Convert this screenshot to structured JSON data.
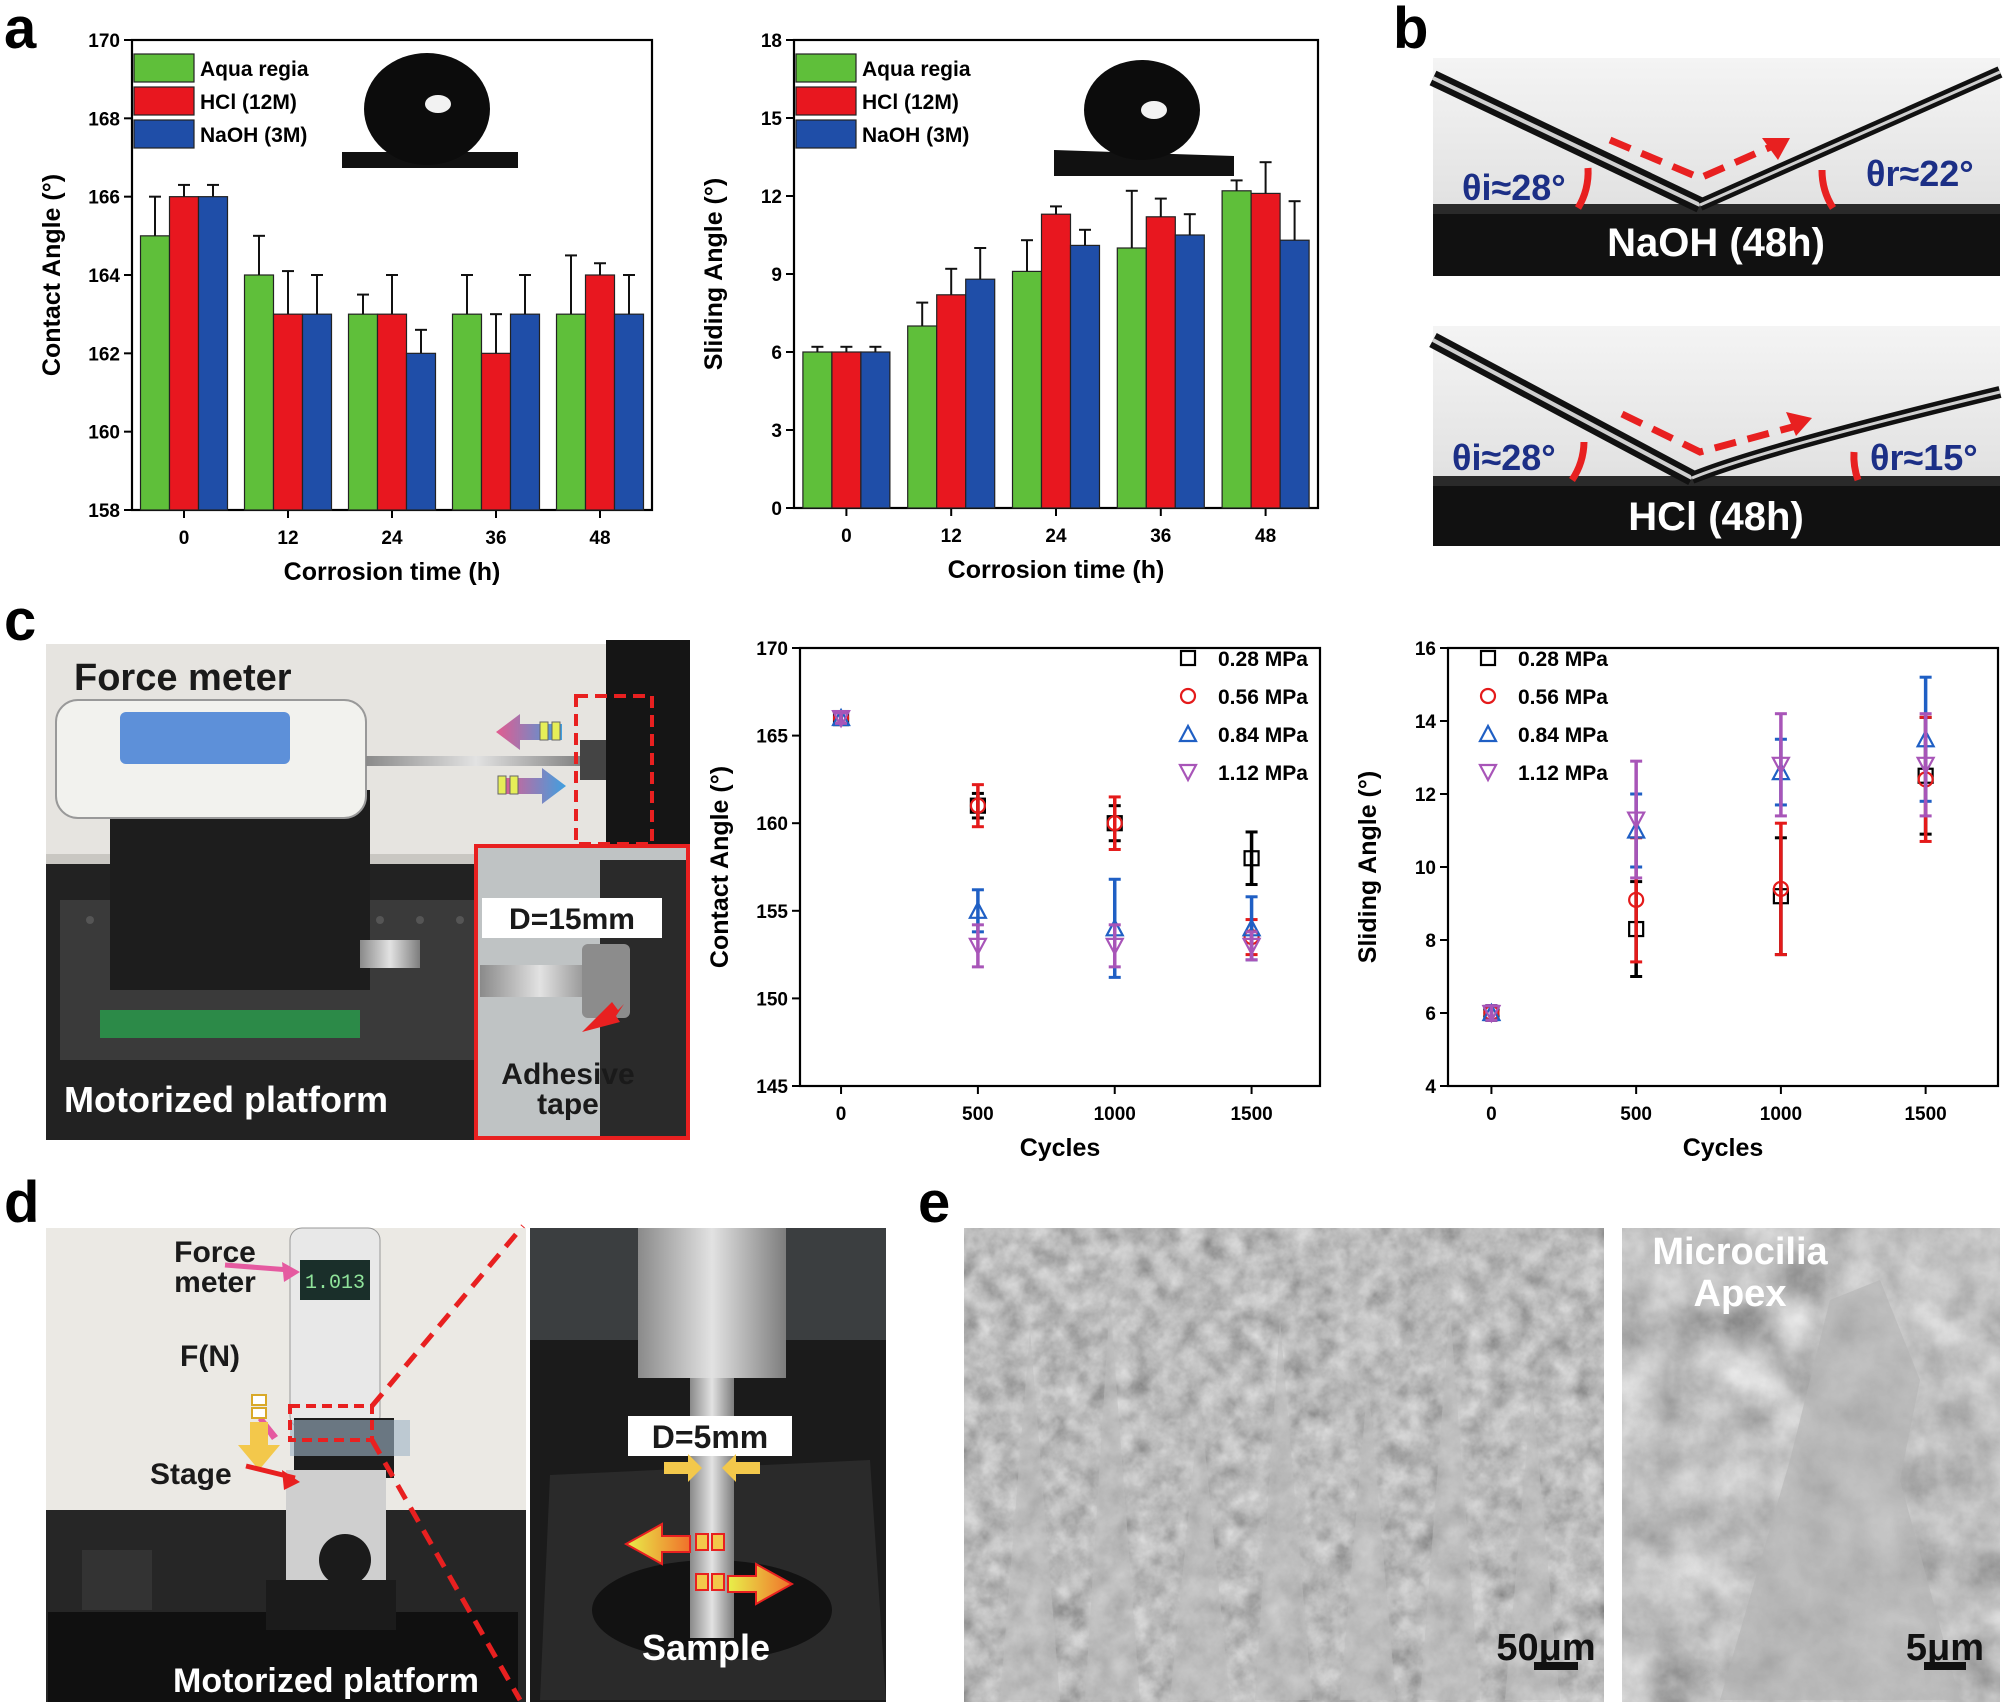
{
  "panel_labels": {
    "a": "a",
    "b": "b",
    "c": "c",
    "d": "d",
    "e": "e"
  },
  "colors": {
    "aqua_regia": "#5fbf3a",
    "hcl": "#e8171f",
    "naoh": "#1f4ea8",
    "p028": "#000000",
    "p056": "#e41a1a",
    "p084": "#1f5fc4",
    "p112": "#a855b8",
    "dashed_red": "#e82020",
    "angle_text": "#1c2f86"
  },
  "chart_data": [
    {
      "type": "bar",
      "ylabel": "Contact Angle (°)",
      "xlabel": "Corrosion time (h)",
      "ylim": [
        158,
        170
      ],
      "yticks": [
        158,
        160,
        162,
        164,
        166,
        168,
        170
      ],
      "categories": [
        "0",
        "12",
        "24",
        "36",
        "48"
      ],
      "legend_position": "top-left",
      "series": [
        {
          "name": "Aqua regia",
          "values": [
            165,
            164,
            163,
            163,
            163
          ],
          "errors": [
            1.0,
            1.0,
            0.5,
            1.0,
            1.5
          ]
        },
        {
          "name": "HCl (12M)",
          "values": [
            166,
            163,
            163,
            162,
            164
          ],
          "errors": [
            0.3,
            1.1,
            1.0,
            1.0,
            0.3
          ]
        },
        {
          "name": "NaOH (3M)",
          "values": [
            166,
            163,
            162,
            163,
            163
          ],
          "errors": [
            0.3,
            1.0,
            0.6,
            1.0,
            1.0
          ]
        }
      ]
    },
    {
      "type": "bar",
      "ylabel": "Sliding Angle (°)",
      "xlabel": "Corrosion time (h)",
      "ylim": [
        0,
        18
      ],
      "yticks": [
        0,
        3,
        6,
        9,
        12,
        15,
        18
      ],
      "categories": [
        "0",
        "12",
        "24",
        "36",
        "48"
      ],
      "legend_position": "top-left",
      "series": [
        {
          "name": "Aqua regia",
          "values": [
            6.0,
            7.0,
            9.1,
            10.0,
            12.2
          ],
          "errors": [
            0.2,
            0.9,
            1.2,
            2.2,
            0.4
          ]
        },
        {
          "name": "HCl (12M)",
          "values": [
            6.0,
            8.2,
            11.3,
            11.2,
            12.1
          ],
          "errors": [
            0.2,
            1.0,
            0.3,
            0.7,
            1.2
          ]
        },
        {
          "name": "NaOH (3M)",
          "values": [
            6.0,
            8.8,
            10.1,
            10.5,
            10.3
          ],
          "errors": [
            0.2,
            1.2,
            0.6,
            0.8,
            1.5
          ]
        }
      ]
    },
    {
      "type": "scatter",
      "ylabel": "Contact Angle (°)",
      "xlabel": "Cycles",
      "ylim": [
        145,
        170
      ],
      "yticks": [
        145,
        150,
        155,
        160,
        165,
        170
      ],
      "x": [
        0,
        500,
        1000,
        1500
      ],
      "legend_position": "top-right",
      "series": [
        {
          "name": "0.28 MPa",
          "marker": "square",
          "values": [
            166,
            161,
            160,
            158
          ],
          "errors": [
            0.3,
            0.7,
            1.0,
            1.5
          ]
        },
        {
          "name": "0.56 MPa",
          "marker": "circle",
          "values": [
            166,
            161,
            160,
            153.5
          ],
          "errors": [
            0.3,
            1.2,
            1.5,
            1.0
          ]
        },
        {
          "name": "0.84 MPa",
          "marker": "triangle-up",
          "values": [
            166,
            155,
            154,
            154
          ],
          "errors": [
            0.3,
            1.2,
            2.8,
            1.8
          ]
        },
        {
          "name": "1.12 MPa",
          "marker": "triangle-down",
          "values": [
            166,
            153,
            153,
            153
          ],
          "errors": [
            0.3,
            1.2,
            1.2,
            0.8
          ]
        }
      ]
    },
    {
      "type": "scatter",
      "ylabel": "Sliding Angle (°)",
      "xlabel": "Cycles",
      "ylim": [
        4,
        16
      ],
      "yticks": [
        4,
        6,
        8,
        10,
        12,
        14,
        16
      ],
      "x": [
        0,
        500,
        1000,
        1500
      ],
      "legend_position": "top-left",
      "series": [
        {
          "name": "0.28 MPa",
          "marker": "square",
          "values": [
            6.0,
            8.3,
            9.2,
            12.5
          ],
          "errors": [
            0.2,
            1.3,
            1.6,
            1.6
          ]
        },
        {
          "name": "0.56 MPa",
          "marker": "circle",
          "values": [
            6.0,
            9.1,
            9.4,
            12.4
          ],
          "errors": [
            0.2,
            1.7,
            1.8,
            1.7
          ]
        },
        {
          "name": "0.84 MPa",
          "marker": "triangle-up",
          "values": [
            6.0,
            11.0,
            12.6,
            13.5
          ],
          "errors": [
            0.2,
            1.0,
            0.9,
            1.7
          ]
        },
        {
          "name": "1.12 MPa",
          "marker": "triangle-down",
          "values": [
            6.0,
            11.3,
            12.8,
            12.8
          ],
          "errors": [
            0.2,
            1.6,
            1.4,
            1.4
          ]
        }
      ]
    }
  ],
  "panel_b": {
    "top": {
      "theta_i": "θi≈28°",
      "theta_r": "θr≈22°",
      "label": "NaOH (48h)"
    },
    "bottom": {
      "theta_i": "θi≈28°",
      "theta_r": "θr≈15°",
      "label": "HCl (48h)"
    }
  },
  "panel_c_photo": {
    "force_meter": "Force meter",
    "diameter": "D=15mm",
    "adhesive_line1": "Adhesive",
    "adhesive_line2": "tape",
    "platform": "Motorized platform"
  },
  "panel_d_photo": {
    "force_meter_line1": "Force",
    "force_meter_line2": "meter",
    "display": "1.013",
    "force": "F(N)",
    "stage": "Stage",
    "platform": "Motorized platform",
    "diameter": "D=5mm",
    "sample": "Sample"
  },
  "panel_e": {
    "scale_left": "50μm",
    "apex_line1": "Microcilia",
    "apex_line2": "Apex",
    "scale_right": "5μm"
  }
}
